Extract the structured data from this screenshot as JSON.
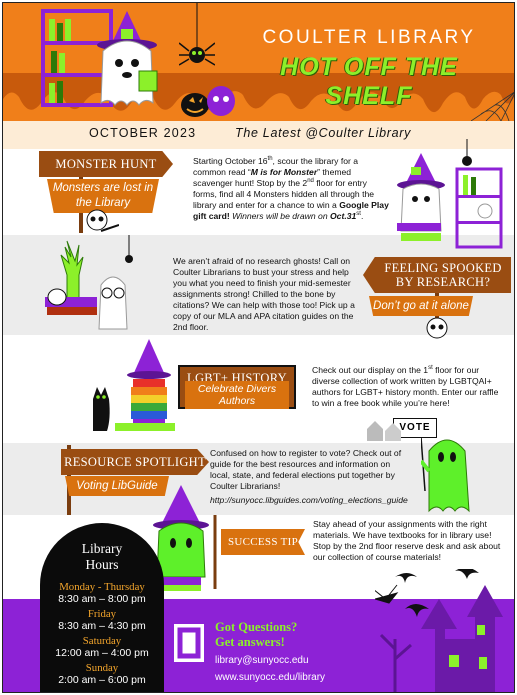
{
  "header": {
    "library_name": "COULTER LIBRARY",
    "tagline": "HOT OFF THE SHELF",
    "month": "OCTOBER 2023",
    "subtitle": "The Latest @Coulter Library"
  },
  "monster_hunt": {
    "sign": "MONSTER HUNT",
    "subsign": "Monsters are lost in the Library",
    "text_1": "Starting October 16",
    "text_1_sup": "th",
    "text_2": ", scour the library for a common read “",
    "book": "M is for Monster",
    "text_3": "” themed scavenger hunt! Stop by the 2",
    "text_3_sup": "nd",
    "text_4": " floor for entry forms, find all 4 Monsters hidden all through the library and enter for a chance to win a ",
    "prize": "Google Play gift card!",
    "winners": " Winners will be drawn on ",
    "date": "Oct.31",
    "date_sup": "st",
    "date_end": "."
  },
  "spooked": {
    "sign_line1": "FEELING SPOOKED",
    "sign_line2": "BY RESEARCH?",
    "subsign": "Don’t go at it alone",
    "text": "We aren’t afraid of no research ghosts! Call on Coulter Librarians to bust your stress and help you what you need to finish your mid-semester assignments strong! Chilled to the bone by citations? We can help with those too! Pick up a copy of our MLA and APA citation guides on the 2nd floor."
  },
  "lgbt": {
    "sign": "LGBT+ HISTORY",
    "subsign": "Celebrate Divers Authors",
    "text_1": "Check out our display on the 1",
    "text_1_sup": "st",
    "text_2": " floor for our diverse collection of work written by LGBTQAI+ authors for LGBT+ history month. Enter our raffle to win a free book while you’re here!"
  },
  "resource": {
    "sign": "RESOURCE SPOTLIGHT",
    "subsign": "Voting LibGuide",
    "text": "Confused on how to register to vote? Check out of guide for the best resources and information on local, state, and federal elections put together by Coulter Librarians!",
    "url": "http://sunyocc.libguides.com/voting_elections_guide",
    "vote_sign": "VOTE"
  },
  "success": {
    "sign": "SUCCESS TIP",
    "text": "Stay ahead of your assignments with the right materials. We have textbooks for in library use! Stop by the 2nd floor reserve desk and ask about our collection of course materials!"
  },
  "hours": {
    "title_line1": "Library",
    "title_line2": "Hours",
    "rows": [
      {
        "day": "Monday - Thursday",
        "time": "8:30 am  – 8:00 pm"
      },
      {
        "day": "Friday",
        "time": "8:30 am  – 4:30 pm"
      },
      {
        "day": "Saturday",
        "time": "12:00 am  – 4:00 pm"
      },
      {
        "day": "Sunday",
        "time": "2:00 am  – 6:00 pm"
      }
    ]
  },
  "footer": {
    "question_1": "Got Questions?",
    "question_2": "Get answers!",
    "email": "library@sunyocc.edu",
    "website": "www.sunyocc.edu/library"
  },
  "colors": {
    "orange": "#f07f1a",
    "brown": "#9a4d12",
    "lime": "#8cf02a",
    "purple": "#8d22d6"
  }
}
